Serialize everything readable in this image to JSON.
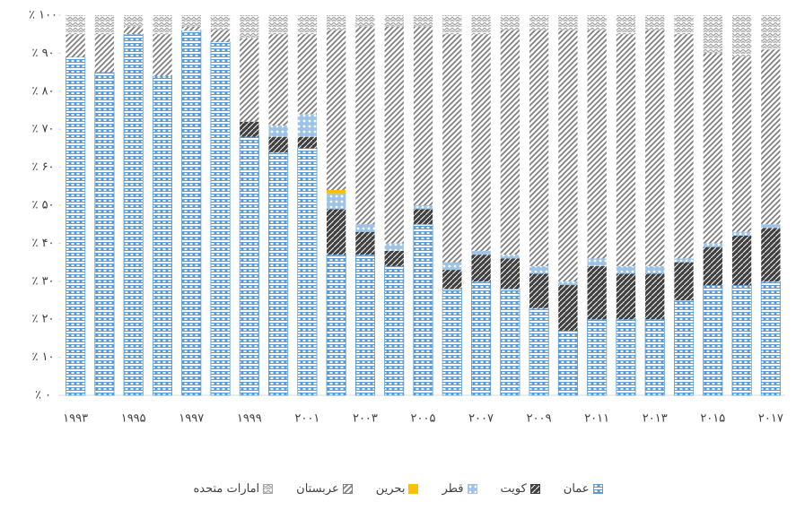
{
  "chart_data": {
    "type": "stacked_bar",
    "categories": [
      "۱۹۹۳",
      null,
      "۱۹۹۵",
      null,
      "۱۹۹۷",
      null,
      "۱۹۹۹",
      null,
      "۲۰۰۱",
      null,
      "۲۰۰۳",
      null,
      "۲۰۰۵",
      null,
      "۲۰۰۷",
      null,
      "۲۰۰۹",
      null,
      "۲۰۱۱",
      null,
      "۲۰۱۳",
      null,
      "۲۰۱۵",
      null,
      "۲۰۱۷"
    ],
    "series": [
      {
        "name": "عمان",
        "color": "#5b9bd5",
        "values": [
          89,
          85,
          95,
          84,
          96,
          93,
          68,
          64,
          65,
          37,
          37,
          34,
          45,
          28,
          30,
          28,
          23,
          17,
          20,
          20,
          20,
          25,
          29,
          29,
          30
        ]
      },
      {
        "name": "کویت",
        "color": "#404040",
        "values": [
          0,
          0,
          0,
          0,
          0,
          0,
          4,
          4,
          3,
          12,
          6,
          4,
          4,
          5,
          7,
          8,
          9,
          12,
          14,
          12,
          12,
          10,
          10,
          13,
          14
        ]
      },
      {
        "name": "قطر",
        "color": "#9dc3e6",
        "values": [
          0,
          0,
          0,
          0,
          0,
          0,
          0,
          3,
          6,
          4,
          2,
          2,
          1,
          2,
          1,
          1,
          2,
          1,
          2,
          2,
          2,
          1,
          1,
          1,
          1
        ]
      },
      {
        "name": "بحرین",
        "color": "#ffc000",
        "values": [
          0,
          0,
          0,
          0,
          0,
          0,
          0,
          0,
          0,
          1,
          0,
          0,
          0,
          0,
          0,
          0,
          0,
          0,
          0,
          0,
          0,
          0,
          0,
          0,
          0
        ]
      },
      {
        "name": "عربستان",
        "color": "#7f7f7f",
        "values": [
          6,
          10,
          2,
          11,
          1,
          3,
          22,
          24,
          21,
          42,
          52,
          57,
          47,
          60,
          57,
          59,
          62,
          66,
          60,
          61,
          62,
          59,
          50,
          46,
          46
        ]
      },
      {
        "name": "امارات متحده",
        "color": "#a5a5a5",
        "values": [
          5,
          5,
          3,
          5,
          3,
          4,
          6,
          5,
          5,
          4,
          3,
          3,
          3,
          5,
          5,
          4,
          4,
          4,
          4,
          5,
          4,
          5,
          10,
          11,
          9
        ]
      }
    ],
    "ylim": [
      0,
      100
    ],
    "yticks": [
      {
        "value": 0,
        "label": "٪ ۰"
      },
      {
        "value": 10,
        "label": "٪ ۱۰"
      },
      {
        "value": 20,
        "label": "٪ ۲۰"
      },
      {
        "value": 30,
        "label": "٪ ۳۰"
      },
      {
        "value": 40,
        "label": "٪ ۴۰"
      },
      {
        "value": 50,
        "label": "٪ ۵۰"
      },
      {
        "value": 60,
        "label": "٪ ۶۰"
      },
      {
        "value": 70,
        "label": "٪ ۷۰"
      },
      {
        "value": 80,
        "label": "٪ ۸۰"
      },
      {
        "value": 90,
        "label": "٪ ۹۰"
      },
      {
        "value": 100,
        "label": "٪ ۱۰۰"
      }
    ],
    "legend": "bottom"
  }
}
